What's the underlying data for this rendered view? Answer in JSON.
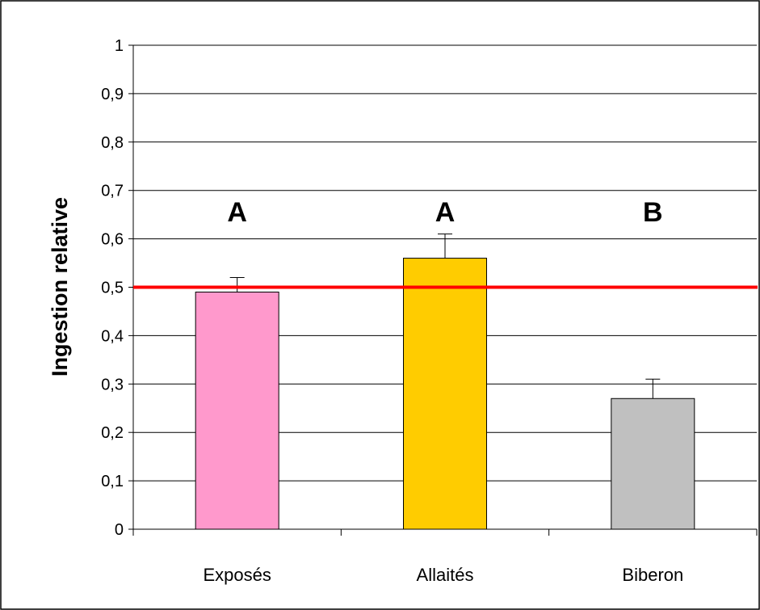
{
  "chart_data": {
    "type": "bar",
    "categories": [
      "Exposés",
      "Allaités",
      "Biberon"
    ],
    "values": [
      0.49,
      0.56,
      0.27
    ],
    "error_bars": [
      0.03,
      0.05,
      0.04
    ],
    "significance_labels": [
      "A",
      "A",
      "B"
    ],
    "bar_colors": [
      "#ff99cc",
      "#ffcc00",
      "#c0c0c0"
    ],
    "reference_line": {
      "value": 0.5,
      "color": "#ff0000"
    },
    "ylabel": "Ingestion relative",
    "xlabel": "",
    "ylim": [
      0,
      1
    ],
    "y_ticks": [
      "0",
      "0,1",
      "0,2",
      "0,3",
      "0,4",
      "0,5",
      "0,6",
      "0,7",
      "0,8",
      "0,9",
      "1"
    ],
    "grid": true,
    "legend": "none"
  }
}
